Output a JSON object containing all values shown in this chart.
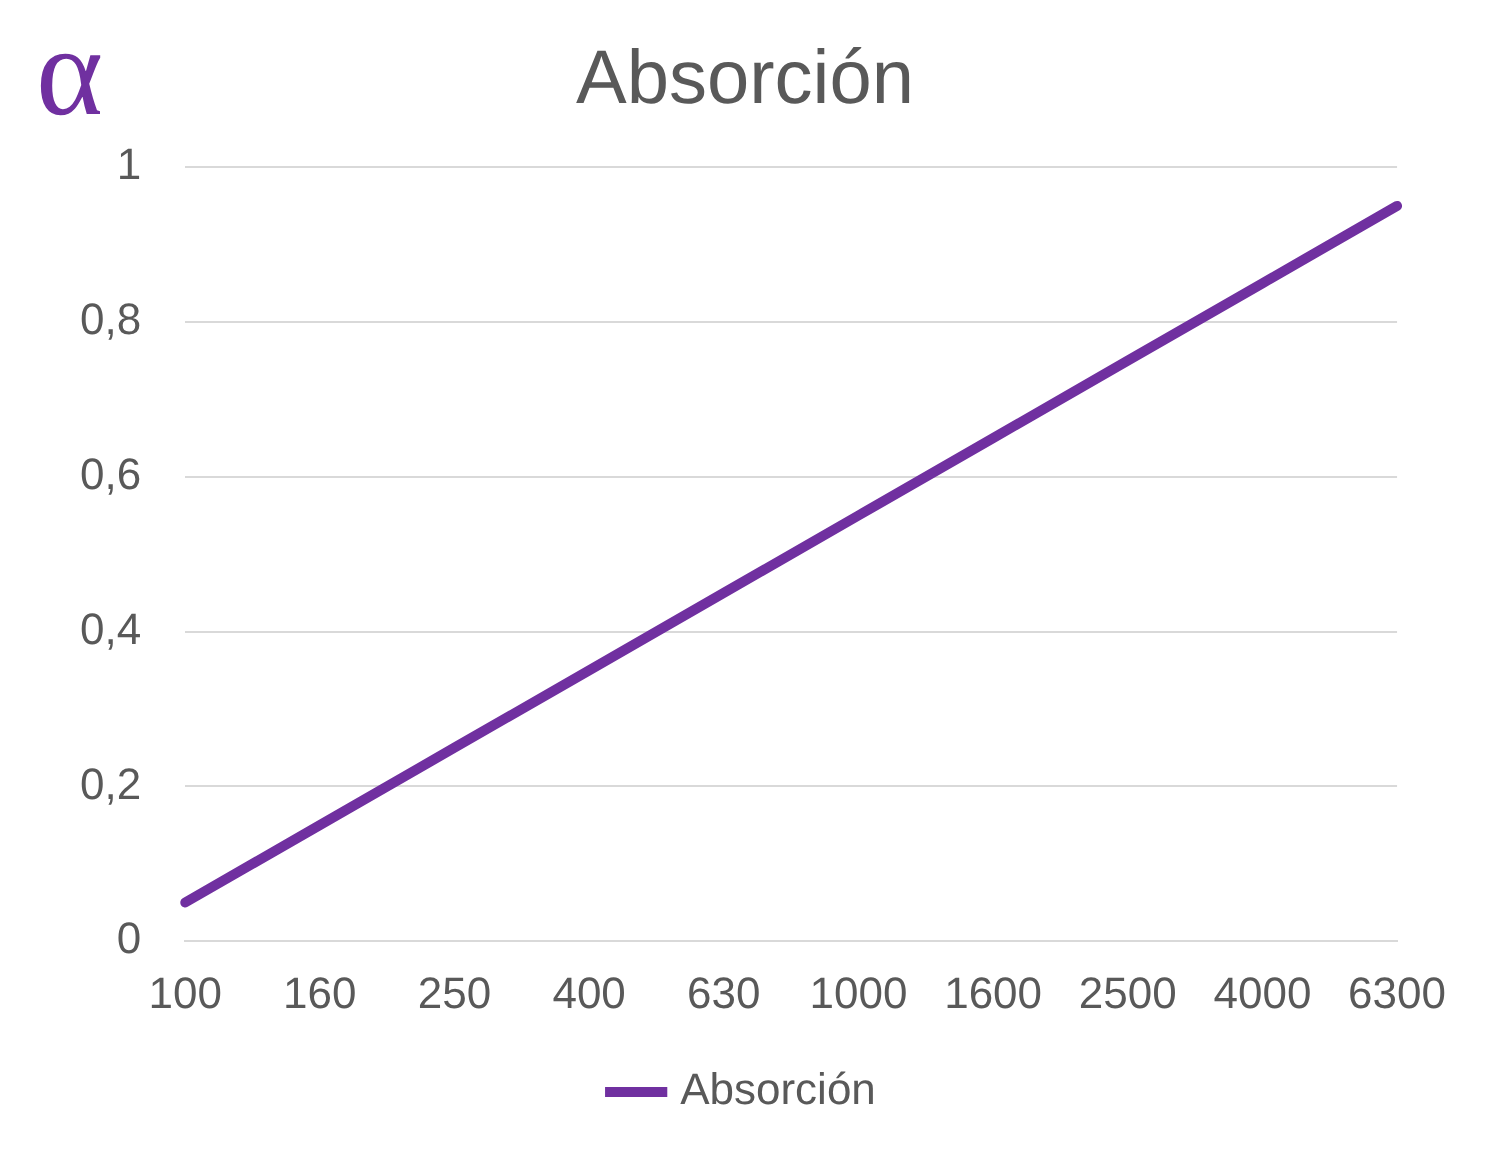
{
  "chart_data": {
    "type": "line",
    "title": "Absorción",
    "ylabel": "α",
    "categories": [
      "100",
      "160",
      "250",
      "400",
      "630",
      "1000",
      "1600",
      "2500",
      "4000",
      "6300"
    ],
    "series": [
      {
        "name": "Absorción",
        "color": "#7030a0",
        "values": [
          0.05,
          0.15,
          0.25,
          0.35,
          0.45,
          0.55,
          0.65,
          0.75,
          0.85,
          0.95
        ]
      }
    ],
    "ylim": [
      0,
      1
    ],
    "yticks": [
      {
        "value": 0,
        "label": "0"
      },
      {
        "value": 0.2,
        "label": "0,2"
      },
      {
        "value": 0.4,
        "label": "0,4"
      },
      {
        "value": 0.6,
        "label": "0,6"
      },
      {
        "value": 0.8,
        "label": "0,8"
      },
      {
        "value": 1,
        "label": "1"
      }
    ],
    "grid": "y",
    "legend": "bottom",
    "marker": "none",
    "line_style": "solid"
  }
}
